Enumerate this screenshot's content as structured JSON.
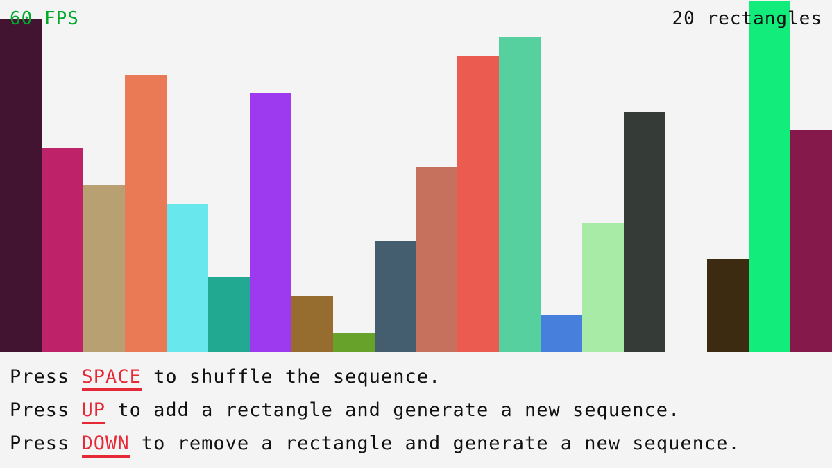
{
  "fps_label": "60 FPS",
  "count_label": "20 rectangles",
  "sequence": {
    "values": [
      18,
      11,
      9,
      15,
      8,
      4,
      14,
      3,
      1,
      6,
      10,
      16,
      17,
      2,
      7,
      13,
      0,
      5,
      19,
      12
    ],
    "max_value": 19,
    "colors": [
      "#421432",
      "#be2268",
      "#b8a073",
      "#ea7a55",
      "#68e8ec",
      "#22a991",
      "#9d3aef",
      "#966d2e",
      "#67a32a",
      "#445d6f",
      "#c6705e",
      "#ec5b50",
      "#57d09f",
      "#4680dc",
      "#a8eba6",
      "#353c37",
      "#f4f4f4",
      "#3d2b11",
      "#12ec7a",
      "#86194b"
    ]
  },
  "instructions": [
    {
      "pre": "Press ",
      "key": "SPACE",
      "post": " to shuffle the sequence."
    },
    {
      "pre": "Press ",
      "key": "UP",
      "post": " to add a rectangle and generate a new sequence."
    },
    {
      "pre": "Press ",
      "key": "DOWN",
      "post": " to remove a rectangle and generate a new sequence."
    }
  ]
}
